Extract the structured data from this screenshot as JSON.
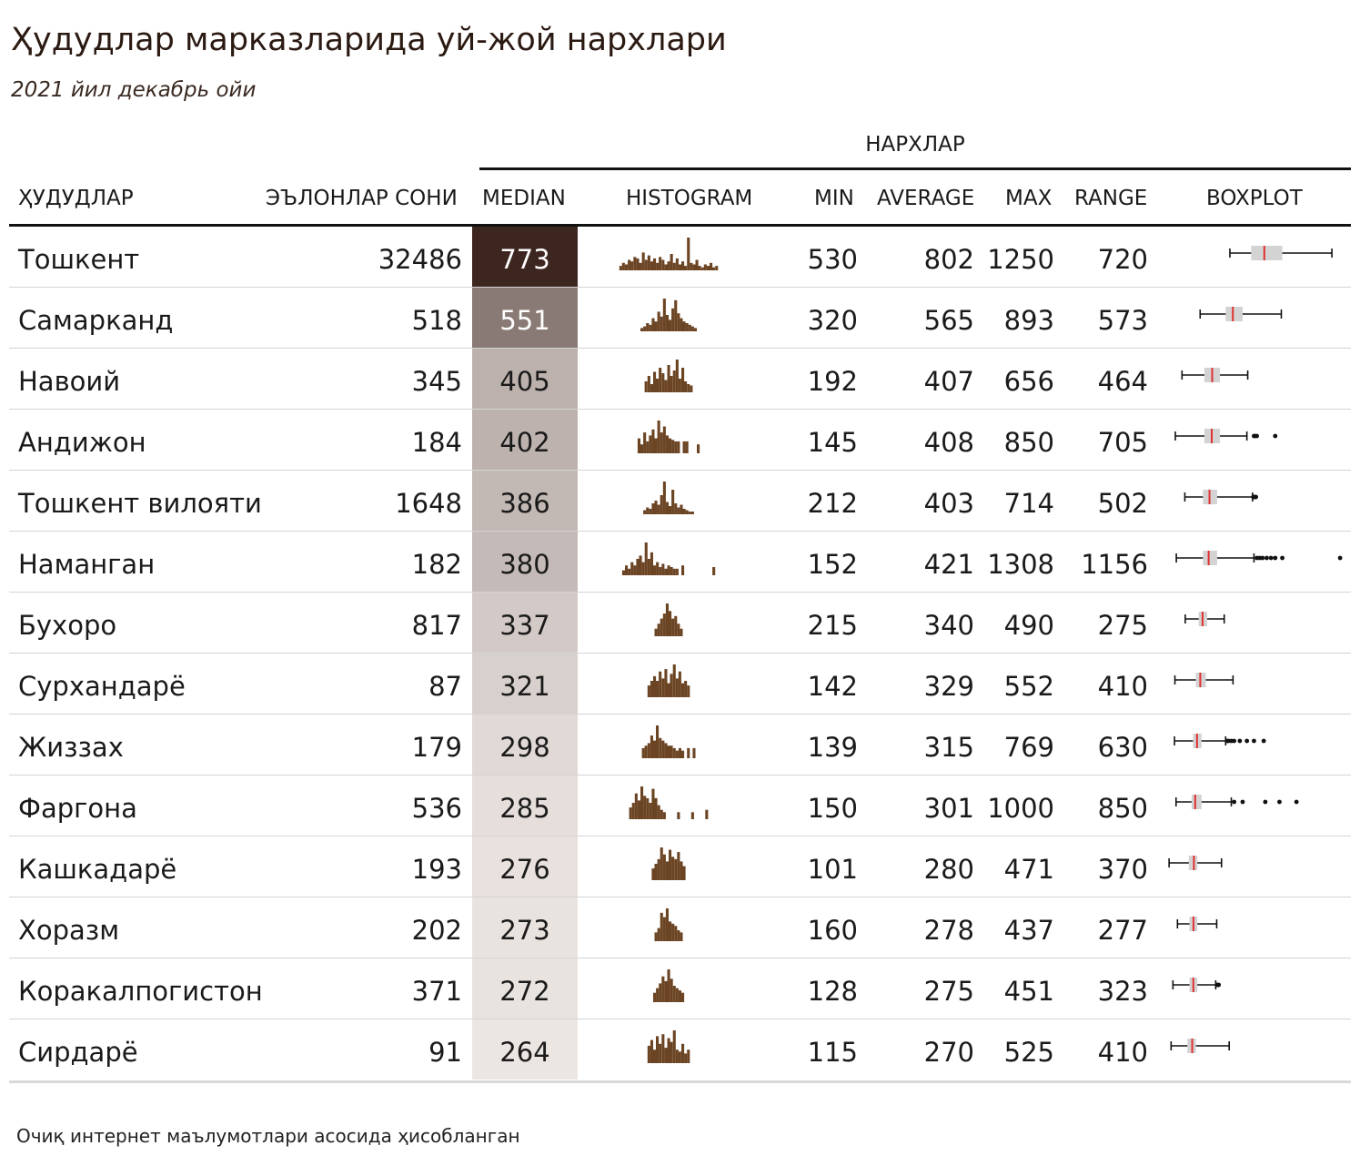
{
  "title": "Ҳудудлар марказларида уй-жой нархлари",
  "subtitle": "2021 йил декабрь ойи",
  "footer": "Очиқ интернет маълумотлари асосида ҳисобланган",
  "spanner": "НАРХЛАР",
  "headers": {
    "region": "ҲУДУДЛАР",
    "count": "ЭЪЛОНЛАР СОНИ",
    "median": "MEDIAN",
    "histogram": "HISTOGRAM",
    "min": "MIN",
    "average": "AVERAGE",
    "max": "MAX",
    "range": "RANGE",
    "boxplot": "BOXPLOT"
  },
  "colors": {
    "histogram": "#6b4423",
    "box_fill": "#d3d3d3",
    "box_median": "#e03030",
    "whisker": "#111111",
    "median_scale_high": "#3d2620",
    "median_scale_low": "#ece6e3"
  },
  "chart_data": {
    "type": "table",
    "boxplot_scale": [
      100,
      1320
    ],
    "median_range": [
      264,
      773
    ],
    "rows": [
      {
        "region": "Тошкент",
        "count": "32486",
        "median": "773",
        "min": "530",
        "average": "802",
        "max": "1250",
        "range": "720",
        "box": {
          "q1": 680,
          "q3": 900,
          "whisker_low": 530,
          "whisker_high": 1250,
          "outliers": []
        },
        "hist": [
          3,
          5,
          4,
          7,
          6,
          9,
          8,
          5,
          12,
          7,
          10,
          6,
          8,
          5,
          9,
          7,
          4,
          6,
          11,
          5,
          8,
          4,
          6,
          3,
          22,
          5,
          4,
          7,
          3,
          2,
          4,
          3,
          5,
          2,
          3
        ]
      },
      {
        "region": "Самарканд",
        "count": "518",
        "median": "551",
        "min": "320",
        "average": "565",
        "max": "893",
        "range": "573",
        "box": {
          "q1": 500,
          "q3": 620,
          "whisker_low": 320,
          "whisker_high": 893,
          "outliers": []
        },
        "hist": [
          2,
          3,
          5,
          4,
          8,
          6,
          12,
          9,
          20,
          10,
          7,
          14,
          19,
          11,
          8,
          6,
          5,
          4,
          3,
          2
        ]
      },
      {
        "region": "Навоий",
        "count": "345",
        "median": "405",
        "min": "192",
        "average": "407",
        "max": "656",
        "range": "464",
        "box": {
          "q1": 350,
          "q3": 460,
          "whisker_low": 192,
          "whisker_high": 656,
          "outliers": []
        },
        "hist": [
          8,
          12,
          6,
          15,
          10,
          18,
          14,
          9,
          20,
          12,
          16,
          24,
          10,
          18,
          8,
          6,
          5
        ]
      },
      {
        "region": "Андижон",
        "count": "184",
        "median": "402",
        "min": "145",
        "average": "408",
        "max": "850",
        "range": "705",
        "box": {
          "q1": 350,
          "q3": 460,
          "whisker_low": 145,
          "whisker_high": 650,
          "outliers": [
            700,
            710,
            720,
            850
          ]
        },
        "hist": [
          10,
          6,
          14,
          8,
          12,
          16,
          10,
          22,
          14,
          18,
          12,
          10,
          9,
          8,
          8,
          0,
          8,
          8,
          0,
          0,
          0,
          6
        ]
      },
      {
        "region": "Тошкент вилояти",
        "count": "1648",
        "median": "386",
        "min": "212",
        "average": "403",
        "max": "714",
        "range": "502",
        "box": {
          "q1": 340,
          "q3": 440,
          "whisker_low": 212,
          "whisker_high": 690,
          "outliers": [
            695,
            700,
            705,
            710,
            714
          ]
        },
        "hist": [
          3,
          5,
          4,
          8,
          10,
          7,
          14,
          24,
          9,
          6,
          18,
          8,
          5,
          7,
          4,
          3,
          2,
          2
        ]
      },
      {
        "region": "Наманган",
        "count": "182",
        "median": "380",
        "min": "152",
        "average": "421",
        "max": "1308",
        "range": "1156",
        "box": {
          "q1": 340,
          "q3": 440,
          "whisker_low": 152,
          "whisker_high": 700,
          "outliers": [
            720,
            740,
            760,
            790,
            820,
            850,
            900,
            1308
          ]
        },
        "hist": [
          3,
          6,
          4,
          8,
          6,
          10,
          12,
          8,
          20,
          10,
          14,
          6,
          8,
          5,
          7,
          4,
          6,
          5,
          4,
          4,
          0,
          6,
          0,
          0,
          0,
          0,
          0,
          0,
          0,
          0,
          0,
          0,
          5
        ]
      },
      {
        "region": "Бухоро",
        "count": "817",
        "median": "337",
        "min": "215",
        "average": "340",
        "max": "490",
        "range": "275",
        "box": {
          "q1": 310,
          "q3": 370,
          "whisker_low": 215,
          "whisker_high": 490,
          "outliers": []
        },
        "hist": [
          6,
          10,
          14,
          18,
          26,
          20,
          14,
          16,
          10,
          6
        ]
      },
      {
        "region": "Сурхандарё",
        "count": "87",
        "median": "321",
        "min": "142",
        "average": "329",
        "max": "552",
        "range": "410",
        "box": {
          "q1": 290,
          "q3": 360,
          "whisker_low": 142,
          "whisker_high": 552,
          "outliers": []
        },
        "hist": [
          10,
          14,
          18,
          14,
          22,
          16,
          24,
          12,
          20,
          28,
          16,
          22,
          12,
          14,
          10
        ]
      },
      {
        "region": "Жиззах",
        "count": "179",
        "median": "298",
        "min": "139",
        "average": "315",
        "max": "769",
        "range": "630",
        "box": {
          "q1": 270,
          "q3": 330,
          "whisker_low": 139,
          "whisker_high": 500,
          "outliers": [
            510,
            520,
            540,
            560,
            600,
            650,
            700,
            769
          ]
        },
        "hist": [
          8,
          10,
          12,
          18,
          14,
          26,
          16,
          14,
          12,
          10,
          10,
          8,
          6,
          8,
          6,
          0,
          8,
          0,
          8
        ]
      },
      {
        "region": "Фаргона",
        "count": "536",
        "median": "285",
        "min": "150",
        "average": "301",
        "max": "1000",
        "range": "850",
        "box": {
          "q1": 260,
          "q3": 330,
          "whisker_low": 150,
          "whisker_high": 540,
          "outliers": [
            560,
            620,
            780,
            880,
            1000
          ]
        },
        "hist": [
          10,
          14,
          22,
          16,
          28,
          20,
          18,
          14,
          26,
          18,
          12,
          8,
          6,
          0,
          0,
          0,
          0,
          6,
          0,
          0,
          0,
          0,
          6,
          0,
          0,
          0,
          0,
          8
        ]
      },
      {
        "region": "Кашкадарё",
        "count": "193",
        "median": "276",
        "min": "101",
        "average": "280",
        "max": "471",
        "range": "370",
        "box": {
          "q1": 240,
          "q3": 300,
          "whisker_low": 101,
          "whisker_high": 471,
          "outliers": []
        },
        "hist": [
          10,
          14,
          18,
          28,
          22,
          16,
          26,
          20,
          18,
          24,
          16,
          12
        ]
      },
      {
        "region": "Хоразм",
        "count": "202",
        "median": "273",
        "min": "160",
        "average": "278",
        "max": "437",
        "range": "277",
        "box": {
          "q1": 245,
          "q3": 300,
          "whisker_low": 160,
          "whisker_high": 437,
          "outliers": []
        },
        "hist": [
          8,
          12,
          26,
          22,
          30,
          18,
          16,
          14,
          10,
          8
        ]
      },
      {
        "region": "Коракалпогистон",
        "count": "371",
        "median": "272",
        "min": "128",
        "average": "275",
        "max": "451",
        "range": "323",
        "box": {
          "q1": 245,
          "q3": 300,
          "whisker_low": 128,
          "whisker_high": 430,
          "outliers": [
            440,
            445,
            451
          ]
        },
        "hist": [
          8,
          12,
          16,
          22,
          18,
          28,
          20,
          14,
          12,
          10,
          8
        ]
      },
      {
        "region": "Сирдарё",
        "count": "91",
        "median": "264",
        "min": "115",
        "average": "270",
        "max": "525",
        "range": "410",
        "box": {
          "q1": 230,
          "q3": 290,
          "whisker_low": 115,
          "whisker_high": 525,
          "outliers": []
        },
        "hist": [
          18,
          24,
          14,
          28,
          20,
          30,
          16,
          26,
          22,
          34,
          14,
          12,
          20,
          10,
          14
        ]
      }
    ]
  }
}
